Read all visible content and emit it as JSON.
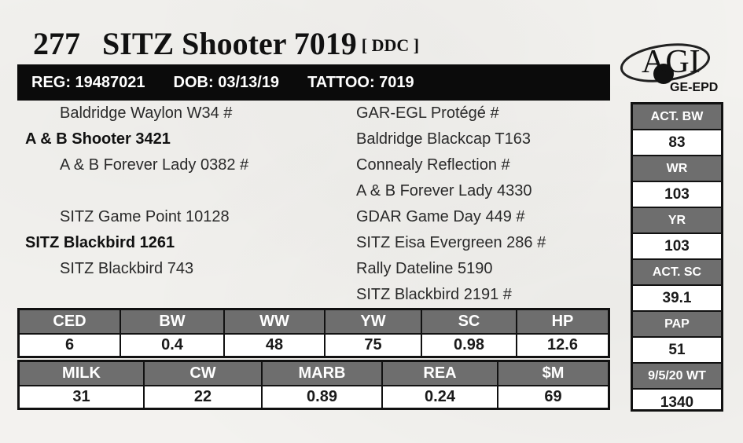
{
  "header": {
    "lot": "277",
    "name": "SITZ Shooter 7019",
    "tag": "[ DDC ]"
  },
  "logo": {
    "text": "AGI",
    "subtext": "GE-EPD"
  },
  "regbar": {
    "reg": "REG: 19487021",
    "dob": "DOB: 03/13/19",
    "tattoo": "TATTOO: 7019"
  },
  "pedigree": {
    "sire_sire": "Baldridge Waylon W34 #",
    "sire": "A & B Shooter 3421",
    "sire_dam": "A & B Forever Lady 0382 #",
    "dam_sire": "SITZ Game Point 10128",
    "dam": "SITZ Blackbird 1261",
    "dam_dam": "SITZ Blackbird 743",
    "right": [
      "GAR-EGL Protégé  #",
      "Baldridge Blackcap T163",
      "Connealy Reflection #",
      "A & B Forever Lady 4330",
      "GDAR Game Day 449 #",
      "SITZ Eisa Evergreen 286 #",
      "Rally Dateline 5190",
      "SITZ Blackbird 2191 #"
    ]
  },
  "side_stats": [
    {
      "label": "ACT. BW",
      "value": "83"
    },
    {
      "label": "WR",
      "value": "103"
    },
    {
      "label": "YR",
      "value": "103"
    },
    {
      "label": "ACT. SC",
      "value": "39.1"
    },
    {
      "label": "PAP",
      "value": "51"
    },
    {
      "label": "9/5/20 WT",
      "value": "1340"
    }
  ],
  "epd_row1": [
    {
      "label": "CED",
      "value": "6"
    },
    {
      "label": "BW",
      "value": "0.4"
    },
    {
      "label": "WW",
      "value": "48"
    },
    {
      "label": "YW",
      "value": "75"
    },
    {
      "label": "SC",
      "value": "0.98"
    },
    {
      "label": "HP",
      "value": "12.6"
    }
  ],
  "epd_row2": [
    {
      "label": "MILK",
      "value": "31"
    },
    {
      "label": "CW",
      "value": "22"
    },
    {
      "label": "MARB",
      "value": "0.89"
    },
    {
      "label": "REA",
      "value": "0.24"
    },
    {
      "label": "$M",
      "value": "69"
    }
  ]
}
